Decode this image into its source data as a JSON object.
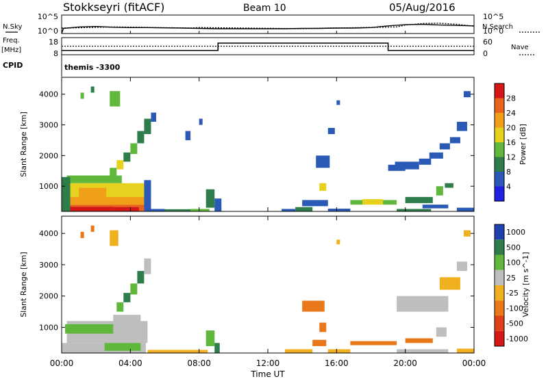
{
  "header": {
    "title": "Stokkseyri (fitACF)",
    "beam": "Beam 10",
    "date": "05/Aug/2016"
  },
  "noise_panel": {
    "left_label": "N.Sky",
    "right_label": "N.Search",
    "left_ticks": [
      "10^5",
      "10^0"
    ],
    "right_ticks": [
      "10^5",
      "10^0"
    ]
  },
  "freq_panel": {
    "left_label_1": "Freq.",
    "left_label_2": "[MHz]",
    "right_label": "Nave",
    "left_ticks": [
      "18",
      "8"
    ],
    "right_ticks": [
      "60",
      "0"
    ],
    "cpid_label": "CPID",
    "cpid_value": "themis -3300"
  },
  "colors": {
    "power": [
      "#2020e0",
      "#2a5ab5",
      "#2e7d4b",
      "#5fb83c",
      "#e6d21e",
      "#f0a018",
      "#e8641a",
      "#d41818"
    ],
    "velocity": [
      "#2040b0",
      "#2e7d4b",
      "#5fb83c",
      "#bebebe",
      "#f0b020",
      "#e8781a",
      "#e04018",
      "#d41818"
    ]
  },
  "chart_data": [
    {
      "type": "line",
      "title": "Stokkseyri (fitACF) Beam 10 05/Aug/2016",
      "xlabel": "Time UT",
      "x_ticks": [
        "00:00",
        "04:00",
        "08:00",
        "12:00",
        "16:00",
        "20:00",
        "00:00"
      ],
      "series": [
        {
          "name": "N.Sky",
          "x": [
            0,
            0.1,
            1,
            2,
            3,
            4,
            5,
            6,
            7,
            8,
            9,
            10,
            11,
            12,
            13,
            14,
            15,
            16,
            17,
            18,
            19,
            20,
            21,
            22,
            23,
            24
          ],
          "values": [
            1,
            25,
            60,
            80,
            50,
            40,
            40,
            35,
            30,
            25,
            20,
            20,
            20,
            20,
            20,
            25,
            25,
            30,
            30,
            40,
            120,
            250,
            300,
            200,
            150,
            120
          ]
        },
        {
          "name": "N.Search",
          "x": [
            0,
            3,
            7.5,
            8,
            14,
            15.5,
            16,
            19.5,
            20,
            21,
            22,
            23,
            24
          ],
          "values": [
            30,
            60,
            30,
            40,
            20,
            30,
            30,
            60,
            200,
            500,
            600,
            300,
            100
          ]
        }
      ]
    },
    {
      "type": "line",
      "series": [
        {
          "name": "Freq.",
          "x": [
            0,
            9.1,
            9.1,
            19.0,
            19.0,
            24
          ],
          "values": [
            10.5,
            10.5,
            14.8,
            14.8,
            10.5,
            10.5
          ]
        },
        {
          "name": "Nave",
          "x": [
            0,
            24
          ],
          "values": [
            30,
            30
          ]
        }
      ]
    },
    {
      "type": "heatmap",
      "ylabel": "Slant Range [km]",
      "y_ticks": [
        1000,
        2000,
        3000,
        4000
      ],
      "ylim": [
        180,
        4550
      ],
      "colorbar_label": "Power [dB]",
      "colorbar_ticks": [
        "28",
        "24",
        "20",
        "16",
        "12",
        "8",
        "4"
      ],
      "levels": [
        4,
        8,
        12,
        16,
        20,
        24,
        28
      ],
      "cells": [
        [
          0.0,
          4.9,
          180,
          400,
          6
        ],
        [
          0.0,
          4.9,
          400,
          650,
          5
        ],
        [
          0.0,
          4.9,
          650,
          1100,
          4
        ],
        [
          0.3,
          3.5,
          1100,
          1350,
          3
        ],
        [
          0.0,
          0.5,
          180,
          1300,
          2
        ],
        [
          4.8,
          5.2,
          180,
          1200,
          1
        ],
        [
          0.5,
          3.0,
          180,
          330,
          7
        ],
        [
          1.0,
          2.6,
          650,
          950,
          5
        ],
        [
          3.0,
          4.5,
          180,
          320,
          7
        ],
        [
          2.8,
          3.2,
          1300,
          1600,
          3
        ],
        [
          3.2,
          3.6,
          1550,
          1850,
          4
        ],
        [
          3.6,
          4.0,
          1800,
          2100,
          2
        ],
        [
          4.0,
          4.4,
          2050,
          2400,
          3
        ],
        [
          4.4,
          4.8,
          2400,
          2800,
          2
        ],
        [
          4.8,
          5.2,
          2700,
          3200,
          2
        ],
        [
          5.2,
          5.5,
          3100,
          3400,
          1
        ],
        [
          2.8,
          3.4,
          3600,
          4100,
          3
        ],
        [
          1.1,
          1.3,
          3850,
          4050,
          3
        ],
        [
          1.7,
          1.9,
          4050,
          4250,
          2
        ],
        [
          5.0,
          6.0,
          180,
          260,
          1
        ],
        [
          6.0,
          7.5,
          180,
          250,
          2
        ],
        [
          7.5,
          8.6,
          190,
          260,
          3
        ],
        [
          8.4,
          8.9,
          300,
          900,
          2
        ],
        [
          8.9,
          9.3,
          180,
          600,
          1
        ],
        [
          7.2,
          7.5,
          2500,
          2800,
          1
        ],
        [
          8.0,
          8.2,
          3000,
          3200,
          1
        ],
        [
          12.8,
          13.6,
          180,
          260,
          1
        ],
        [
          13.6,
          14.6,
          180,
          320,
          2
        ],
        [
          14.0,
          15.5,
          350,
          550,
          1
        ],
        [
          15.0,
          15.4,
          850,
          1100,
          4
        ],
        [
          14.8,
          15.6,
          1600,
          2000,
          1
        ],
        [
          15.5,
          15.9,
          2700,
          2900,
          1
        ],
        [
          16.0,
          16.2,
          3650,
          3800,
          1
        ],
        [
          15.5,
          16.8,
          180,
          270,
          1
        ],
        [
          16.8,
          17.6,
          400,
          550,
          3
        ],
        [
          17.5,
          18.7,
          400,
          580,
          4
        ],
        [
          18.7,
          19.5,
          400,
          550,
          3
        ],
        [
          19.5,
          21.5,
          180,
          260,
          2
        ],
        [
          20.0,
          21.6,
          450,
          650,
          2
        ],
        [
          21.0,
          22.5,
          280,
          400,
          1
        ],
        [
          19.0,
          20.0,
          1500,
          1700,
          1
        ],
        [
          19.4,
          20.8,
          1550,
          1800,
          1
        ],
        [
          20.8,
          21.5,
          1700,
          1900,
          1
        ],
        [
          21.4,
          22.2,
          1900,
          2100,
          1
        ],
        [
          22.0,
          22.6,
          2200,
          2400,
          1
        ],
        [
          22.6,
          23.2,
          2400,
          2600,
          1
        ],
        [
          23.0,
          23.6,
          2800,
          3100,
          1
        ],
        [
          21.8,
          22.2,
          700,
          1000,
          3
        ],
        [
          22.3,
          22.8,
          950,
          1100,
          2
        ],
        [
          23.0,
          24.0,
          180,
          300,
          1
        ],
        [
          23.4,
          23.8,
          3900,
          4100,
          1
        ]
      ]
    },
    {
      "type": "heatmap",
      "xlabel": "Time UT",
      "ylabel": "Slant Range [km]",
      "y_ticks": [
        1000,
        2000,
        3000,
        4000
      ],
      "ylim": [
        180,
        4550
      ],
      "colorbar_label": "Velocity [m s^-1]",
      "colorbar_ticks": [
        "1000",
        "500",
        "100",
        "25",
        "-25",
        "-100",
        "-500",
        "-1000"
      ],
      "levels": [
        -1000,
        -500,
        -100,
        -25,
        25,
        100,
        500,
        1000
      ],
      "cells": [
        [
          0.0,
          4.9,
          180,
          500,
          3
        ],
        [
          0.3,
          5.0,
          500,
          1200,
          3
        ],
        [
          0.2,
          3.0,
          800,
          1100,
          2
        ],
        [
          2.5,
          4.6,
          250,
          500,
          2
        ],
        [
          3.0,
          4.6,
          1100,
          1400,
          3
        ],
        [
          3.2,
          3.6,
          1500,
          1800,
          2
        ],
        [
          3.6,
          4.0,
          1800,
          2100,
          1
        ],
        [
          4.0,
          4.4,
          2050,
          2400,
          2
        ],
        [
          4.4,
          4.8,
          2400,
          2800,
          1
        ],
        [
          4.8,
          5.2,
          2700,
          3200,
          3
        ],
        [
          2.8,
          3.3,
          3600,
          4100,
          4
        ],
        [
          1.1,
          1.3,
          3850,
          4050,
          5
        ],
        [
          1.7,
          1.9,
          4050,
          4250,
          5
        ],
        [
          5.0,
          8.5,
          180,
          280,
          4
        ],
        [
          8.4,
          8.9,
          400,
          900,
          2
        ],
        [
          8.9,
          9.2,
          180,
          500,
          1
        ],
        [
          13.0,
          14.6,
          180,
          300,
          4
        ],
        [
          14.6,
          15.4,
          400,
          600,
          5
        ],
        [
          15.0,
          15.4,
          850,
          1150,
          5
        ],
        [
          14.0,
          15.3,
          1500,
          1850,
          5
        ],
        [
          16.0,
          16.2,
          3650,
          3800,
          4
        ],
        [
          15.5,
          16.8,
          180,
          300,
          4
        ],
        [
          16.8,
          19.5,
          430,
          560,
          5
        ],
        [
          19.5,
          22.5,
          180,
          300,
          3
        ],
        [
          20.0,
          21.6,
          500,
          650,
          5
        ],
        [
          19.5,
          22.5,
          1500,
          2000,
          3
        ],
        [
          21.8,
          22.4,
          700,
          1000,
          3
        ],
        [
          22.0,
          23.2,
          2200,
          2600,
          4
        ],
        [
          23.0,
          23.6,
          2800,
          3100,
          3
        ],
        [
          23.0,
          24.0,
          180,
          320,
          4
        ],
        [
          23.4,
          23.8,
          3900,
          4100,
          4
        ]
      ]
    }
  ]
}
